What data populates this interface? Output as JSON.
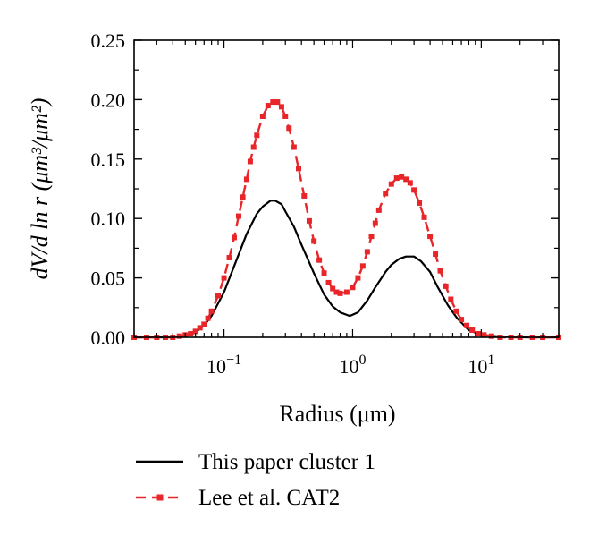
{
  "chart_data": {
    "type": "line",
    "x_scale": "log",
    "xlabel": "Radius (μm)",
    "ylabel": "dV/d ln r (μm³/μm²)",
    "xlim": [
      0.02,
      40
    ],
    "ylim": [
      0,
      0.25
    ],
    "x_ticks": [
      {
        "value": 0.1,
        "label": "10",
        "exp": "−1"
      },
      {
        "value": 1,
        "label": "10",
        "exp": "0"
      },
      {
        "value": 10,
        "label": "10",
        "exp": "1"
      }
    ],
    "y_ticks": [
      {
        "value": 0.0,
        "label": "0.00"
      },
      {
        "value": 0.05,
        "label": "0.05"
      },
      {
        "value": 0.1,
        "label": "0.10"
      },
      {
        "value": 0.15,
        "label": "0.15"
      },
      {
        "value": 0.2,
        "label": "0.20"
      },
      {
        "value": 0.25,
        "label": "0.25"
      }
    ],
    "grid": false,
    "legend_position": "bottom",
    "series": [
      {
        "name": "This paper cluster 1",
        "color": "#000000",
        "style": "solid",
        "marker": "none",
        "x": [
          0.02,
          0.035,
          0.05,
          0.06,
          0.07,
          0.08,
          0.1,
          0.12,
          0.15,
          0.18,
          0.2,
          0.23,
          0.25,
          0.28,
          0.3,
          0.35,
          0.4,
          0.5,
          0.6,
          0.7,
          0.8,
          0.95,
          1.1,
          1.3,
          1.5,
          1.8,
          2.0,
          2.3,
          2.6,
          3.0,
          3.4,
          4.0,
          4.6,
          5.5,
          6.5,
          8.0,
          10.0,
          13.0,
          20.0,
          40.0
        ],
        "values": [
          0.0,
          0.0,
          0.001,
          0.004,
          0.01,
          0.018,
          0.038,
          0.06,
          0.087,
          0.104,
          0.11,
          0.115,
          0.115,
          0.112,
          0.106,
          0.093,
          0.078,
          0.054,
          0.036,
          0.026,
          0.021,
          0.018,
          0.021,
          0.031,
          0.042,
          0.055,
          0.061,
          0.066,
          0.068,
          0.068,
          0.064,
          0.055,
          0.042,
          0.027,
          0.016,
          0.006,
          0.002,
          0.001,
          0.0,
          0.0
        ]
      },
      {
        "name": "Lee et al. CAT2",
        "color": "#e8262a",
        "style": "dashed",
        "marker": "square",
        "x": [
          0.02,
          0.025,
          0.03,
          0.035,
          0.04,
          0.045,
          0.05,
          0.055,
          0.06,
          0.065,
          0.07,
          0.075,
          0.08,
          0.09,
          0.1,
          0.11,
          0.12,
          0.13,
          0.14,
          0.15,
          0.16,
          0.17,
          0.18,
          0.2,
          0.22,
          0.24,
          0.26,
          0.28,
          0.3,
          0.32,
          0.35,
          0.38,
          0.42,
          0.46,
          0.5,
          0.55,
          0.6,
          0.65,
          0.7,
          0.75,
          0.8,
          0.9,
          1.0,
          1.1,
          1.2,
          1.3,
          1.4,
          1.5,
          1.6,
          1.8,
          2.0,
          2.2,
          2.4,
          2.6,
          2.8,
          3.0,
          3.3,
          3.6,
          4.0,
          4.4,
          4.8,
          5.3,
          5.8,
          6.4,
          7.0,
          7.7,
          8.5,
          9.5,
          10.5,
          12.0,
          14.0,
          17.0,
          20.0,
          25.0,
          30.0,
          40.0
        ],
        "values": [
          0.0,
          0.0,
          0.0,
          0.0,
          0.0,
          0.001,
          0.002,
          0.003,
          0.005,
          0.008,
          0.011,
          0.016,
          0.022,
          0.035,
          0.05,
          0.067,
          0.084,
          0.102,
          0.118,
          0.133,
          0.148,
          0.16,
          0.17,
          0.186,
          0.195,
          0.198,
          0.198,
          0.194,
          0.186,
          0.176,
          0.16,
          0.142,
          0.119,
          0.098,
          0.081,
          0.065,
          0.054,
          0.046,
          0.041,
          0.038,
          0.037,
          0.038,
          0.042,
          0.05,
          0.06,
          0.072,
          0.085,
          0.096,
          0.107,
          0.121,
          0.129,
          0.134,
          0.135,
          0.133,
          0.13,
          0.124,
          0.113,
          0.101,
          0.085,
          0.07,
          0.056,
          0.043,
          0.032,
          0.022,
          0.015,
          0.01,
          0.006,
          0.003,
          0.002,
          0.001,
          0.0,
          0.0,
          0.0,
          0.0,
          0.0,
          0.0
        ]
      }
    ]
  }
}
